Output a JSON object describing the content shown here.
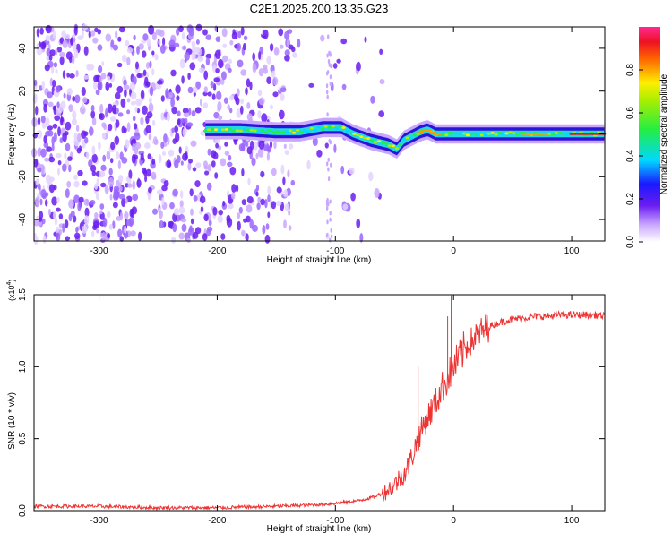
{
  "title": "C2E1.2025.200.13.35.G23",
  "colorbar": {
    "label": "Normalized spectral amplitude",
    "ticks": [
      "0.0",
      "0.2",
      "0.4",
      "0.6",
      "0.8"
    ],
    "tick_values": [
      0.0,
      0.2,
      0.4,
      0.6,
      0.8
    ],
    "range": [
      0,
      1
    ]
  },
  "chart_data": [
    {
      "type": "heatmap",
      "xlabel": "Height of straight line (km)",
      "ylabel": "Frequency (Hz)",
      "xlim": [
        -355,
        128
      ],
      "ylim": [
        -50,
        50
      ],
      "x_ticks": [
        -300,
        -200,
        -100,
        0,
        100
      ],
      "x_tick_labels": [
        "-300",
        "-200",
        "-100",
        "0",
        "100"
      ],
      "y_ticks": [
        -40,
        -20,
        0,
        20,
        40
      ],
      "y_tick_labels": [
        "-40",
        "-20",
        "0",
        "20",
        "40"
      ],
      "ridge": {
        "x": [
          -210,
          -180,
          -150,
          -130,
          -110,
          -95,
          -85,
          -70,
          -55,
          -48,
          -42,
          -35,
          -28,
          -22,
          -15,
          -5,
          10,
          40,
          70,
          100,
          128
        ],
        "y": [
          2,
          2,
          1,
          1,
          3,
          3,
          0,
          -3,
          -5,
          -7,
          -3,
          -1,
          1,
          2,
          0,
          0,
          0,
          0,
          0,
          0,
          0
        ]
      },
      "noise_region_x": [
        -355,
        -135
      ],
      "high_amplitude_segments": [
        {
          "x": [
            -30,
            -10
          ],
          "level": 0.9
        },
        {
          "x": [
            60,
            80
          ],
          "level": 0.8
        },
        {
          "x": [
            100,
            128
          ],
          "level": 0.95
        }
      ]
    },
    {
      "type": "line",
      "xlabel": "Height of straight line (km)",
      "ylabel": "SNR (10 * v/v)",
      "scale_label": "(x10",
      "scale_exp": "4",
      "scale_close": ")",
      "xlim": [
        -355,
        128
      ],
      "ylim": [
        0,
        1.5
      ],
      "x_ticks": [
        -300,
        -200,
        -100,
        0,
        100
      ],
      "x_tick_labels": [
        "-300",
        "-200",
        "-100",
        "0",
        "100"
      ],
      "y_ticks": [
        0.0,
        0.5,
        1.0,
        1.5
      ],
      "y_tick_labels": [
        "0.0",
        "0.5",
        "1.0",
        "1.5"
      ],
      "color": "#ee3333",
      "series": [
        {
          "x": [
            -355,
            -300,
            -250,
            -200,
            -150,
            -120,
            -100,
            -80,
            -70,
            -60,
            -50,
            -40,
            -35,
            -30,
            -25,
            -20,
            -15,
            -10,
            -5,
            0,
            5,
            10,
            20,
            30,
            40,
            50,
            60,
            70,
            80,
            90,
            100,
            110,
            120,
            128
          ],
          "y": [
            0.03,
            0.03,
            0.02,
            0.02,
            0.03,
            0.04,
            0.05,
            0.07,
            0.09,
            0.12,
            0.18,
            0.28,
            0.38,
            0.5,
            0.6,
            0.68,
            0.75,
            0.85,
            0.92,
            1.0,
            1.06,
            1.13,
            1.22,
            1.28,
            1.31,
            1.33,
            1.34,
            1.35,
            1.35,
            1.36,
            1.36,
            1.36,
            1.36,
            1.35
          ]
        }
      ],
      "spikes": [
        {
          "x": -2,
          "y": 1.5
        },
        {
          "x": -5,
          "y": 1.35
        },
        {
          "x": -30,
          "y": 1.0
        }
      ]
    }
  ]
}
